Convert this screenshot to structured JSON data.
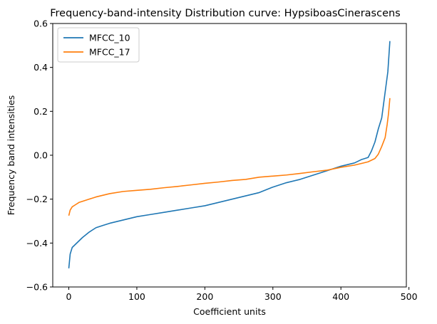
{
  "chart_data": {
    "type": "line",
    "title": "Frequency-band-intensity Distribution curve: HypsiboasCinerascens",
    "xlabel": "Coefficient units",
    "ylabel": "Frequency band intensities",
    "xlim": [
      -23.6,
      496.2
    ],
    "ylim": [
      -0.6,
      0.6
    ],
    "xticks": [
      0,
      100,
      200,
      300,
      400,
      500
    ],
    "yticks": [
      -0.6,
      -0.4,
      -0.2,
      0.0,
      0.2,
      0.4,
      0.6
    ],
    "xtick_labels": [
      "0",
      "100",
      "200",
      "300",
      "400",
      "500"
    ],
    "ytick_labels": [
      "−0.6",
      "−0.4",
      "−0.2",
      "0.0",
      "0.2",
      "0.4",
      "0.6"
    ],
    "grid": false,
    "legend_position": "top-left",
    "series": [
      {
        "name": "MFCC_10",
        "color": "#1f77b4",
        "x": [
          0,
          2,
          5,
          10,
          15,
          20,
          30,
          40,
          50,
          60,
          80,
          100,
          120,
          140,
          160,
          180,
          200,
          220,
          240,
          260,
          280,
          300,
          320,
          340,
          360,
          380,
          400,
          420,
          430,
          440,
          445,
          450,
          455,
          460,
          463,
          466,
          469,
          472
        ],
        "y": [
          -0.515,
          -0.45,
          -0.42,
          -0.405,
          -0.39,
          -0.375,
          -0.35,
          -0.33,
          -0.32,
          -0.31,
          -0.295,
          -0.28,
          -0.27,
          -0.26,
          -0.25,
          -0.24,
          -0.23,
          -0.215,
          -0.2,
          -0.185,
          -0.17,
          -0.145,
          -0.125,
          -0.11,
          -0.09,
          -0.07,
          -0.05,
          -0.035,
          -0.02,
          -0.01,
          0.02,
          0.06,
          0.12,
          0.17,
          0.24,
          0.31,
          0.38,
          0.52
        ]
      },
      {
        "name": "MFCC_17",
        "color": "#ff7f0e",
        "x": [
          0,
          2,
          5,
          10,
          15,
          20,
          30,
          40,
          60,
          80,
          100,
          120,
          140,
          160,
          180,
          200,
          220,
          240,
          260,
          280,
          300,
          320,
          340,
          360,
          380,
          400,
          420,
          440,
          450,
          455,
          460,
          465,
          468,
          470,
          472
        ],
        "y": [
          -0.275,
          -0.25,
          -0.235,
          -0.225,
          -0.215,
          -0.21,
          -0.2,
          -0.19,
          -0.175,
          -0.165,
          -0.16,
          -0.155,
          -0.148,
          -0.142,
          -0.135,
          -0.128,
          -0.122,
          -0.115,
          -0.11,
          -0.1,
          -0.095,
          -0.09,
          -0.083,
          -0.075,
          -0.068,
          -0.055,
          -0.045,
          -0.03,
          -0.015,
          0.005,
          0.04,
          0.08,
          0.14,
          0.19,
          0.26
        ]
      }
    ]
  }
}
